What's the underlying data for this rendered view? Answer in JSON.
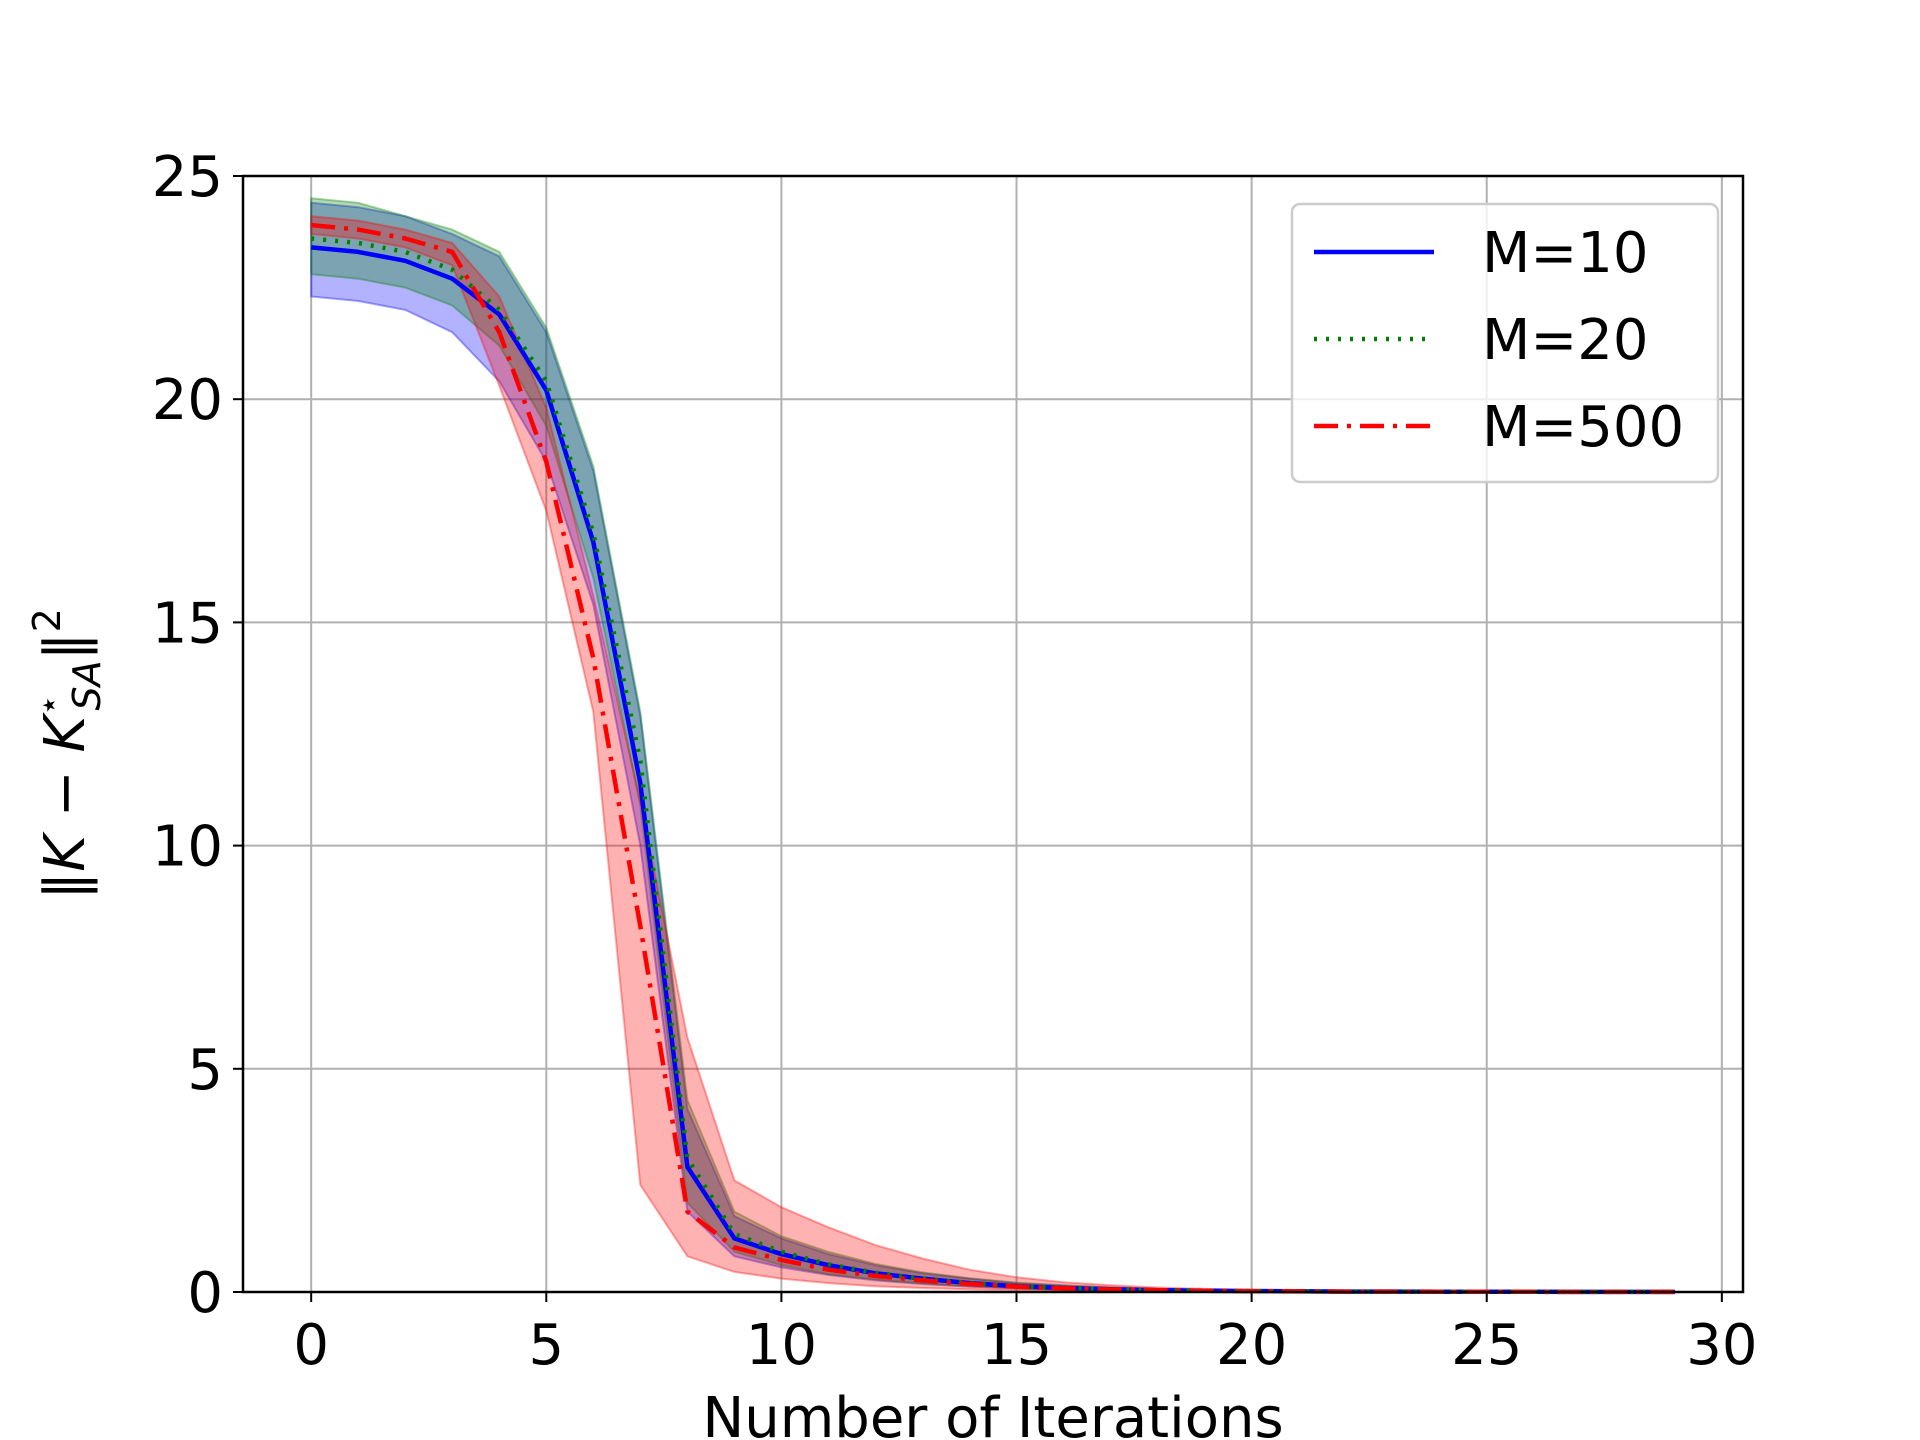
{
  "chart_data": {
    "type": "line",
    "title": "",
    "xlabel": "Number of Iterations",
    "ylabel_parts": {
      "norm_open": "‖",
      "k": "K",
      "minus": " − ",
      "k2": "K",
      "sup_star": "⋆",
      "sub": "SA",
      "norm_close": "‖",
      "sup_2": "2"
    },
    "xlim": [
      -1.45,
      30.45
    ],
    "ylim": [
      0,
      25
    ],
    "xticks": [
      0,
      5,
      10,
      15,
      20,
      25,
      30
    ],
    "yticks": [
      0,
      5,
      10,
      15,
      20,
      25
    ],
    "grid": true,
    "legend_position": "top-right",
    "x": [
      0,
      1,
      2,
      3,
      4,
      5,
      6,
      7,
      8,
      9,
      10,
      11,
      12,
      13,
      14,
      15,
      16,
      17,
      18,
      19,
      20,
      21,
      22,
      23,
      24,
      25,
      26,
      27,
      28,
      29
    ],
    "series": [
      {
        "name": "M=10",
        "color": "#0000ff",
        "band_color": "#0000ff",
        "line_style": "solid",
        "values": [
          23.4,
          23.3,
          23.1,
          22.7,
          21.9,
          20.2,
          16.8,
          11.4,
          2.8,
          1.2,
          0.85,
          0.6,
          0.42,
          0.3,
          0.2,
          0.13,
          0.09,
          0.06,
          0.04,
          0.03,
          0.02,
          0.015,
          0.01,
          0.008,
          0.006,
          0.005,
          0.004,
          0.003,
          0.003,
          0.002
        ],
        "lower": [
          22.3,
          22.2,
          22.0,
          21.5,
          20.4,
          18.6,
          15.4,
          10.0,
          1.8,
          0.8,
          0.55,
          0.38,
          0.26,
          0.18,
          0.12,
          0.08,
          0.05,
          0.03,
          0.02,
          0.015,
          0.01,
          0.008,
          0.005,
          0.004,
          0.003,
          0.002,
          0.002,
          0.001,
          0.001,
          0.001
        ],
        "upper": [
          24.4,
          24.3,
          24.1,
          23.7,
          23.2,
          21.5,
          18.4,
          12.9,
          4.1,
          1.7,
          1.2,
          0.85,
          0.6,
          0.42,
          0.3,
          0.2,
          0.14,
          0.1,
          0.07,
          0.05,
          0.035,
          0.025,
          0.018,
          0.013,
          0.01,
          0.008,
          0.006,
          0.005,
          0.004,
          0.003
        ]
      },
      {
        "name": "M=20",
        "color": "#008000",
        "band_color": "#008000",
        "line_style": "dotted",
        "values": [
          23.6,
          23.5,
          23.3,
          22.9,
          22.0,
          20.4,
          17.0,
          11.9,
          3.0,
          1.3,
          0.9,
          0.62,
          0.43,
          0.3,
          0.2,
          0.13,
          0.09,
          0.06,
          0.04,
          0.03,
          0.02,
          0.015,
          0.01,
          0.008,
          0.006,
          0.005,
          0.004,
          0.003,
          0.003,
          0.002
        ],
        "lower": [
          22.8,
          22.7,
          22.5,
          22.1,
          21.2,
          19.4,
          16.0,
          10.9,
          2.0,
          0.9,
          0.6,
          0.4,
          0.28,
          0.19,
          0.13,
          0.08,
          0.05,
          0.03,
          0.02,
          0.015,
          0.01,
          0.008,
          0.005,
          0.004,
          0.003,
          0.002,
          0.002,
          0.001,
          0.001,
          0.001
        ],
        "upper": [
          24.5,
          24.4,
          24.1,
          23.8,
          23.3,
          21.6,
          18.5,
          13.0,
          4.3,
          1.8,
          1.25,
          0.9,
          0.63,
          0.44,
          0.31,
          0.21,
          0.15,
          0.1,
          0.07,
          0.05,
          0.035,
          0.025,
          0.018,
          0.013,
          0.01,
          0.008,
          0.006,
          0.005,
          0.004,
          0.003
        ]
      },
      {
        "name": "M=500",
        "color": "#ff0000",
        "band_color": "#ff0000",
        "line_style": "dashdot",
        "values": [
          23.9,
          23.8,
          23.6,
          23.3,
          21.5,
          18.6,
          14.2,
          8.2,
          1.8,
          1.0,
          0.72,
          0.5,
          0.36,
          0.26,
          0.18,
          0.12,
          0.08,
          0.055,
          0.038,
          0.027,
          0.019,
          0.014,
          0.01,
          0.008,
          0.006,
          0.005,
          0.004,
          0.003,
          0.003,
          0.002
        ],
        "lower": [
          23.7,
          23.6,
          23.4,
          23.0,
          20.3,
          17.5,
          13.0,
          2.4,
          0.8,
          0.45,
          0.3,
          0.2,
          0.13,
          0.09,
          0.06,
          0.04,
          0.025,
          0.017,
          0.011,
          0.008,
          0.005,
          0.004,
          0.003,
          0.002,
          0.002,
          0.001,
          0.001,
          0.001,
          0.001,
          0.001
        ],
        "upper": [
          24.1,
          24.0,
          23.8,
          23.5,
          22.3,
          19.8,
          15.6,
          11.0,
          5.7,
          2.5,
          1.9,
          1.45,
          1.05,
          0.75,
          0.5,
          0.33,
          0.22,
          0.15,
          0.1,
          0.07,
          0.05,
          0.035,
          0.025,
          0.018,
          0.013,
          0.01,
          0.008,
          0.006,
          0.005,
          0.004
        ]
      }
    ]
  }
}
